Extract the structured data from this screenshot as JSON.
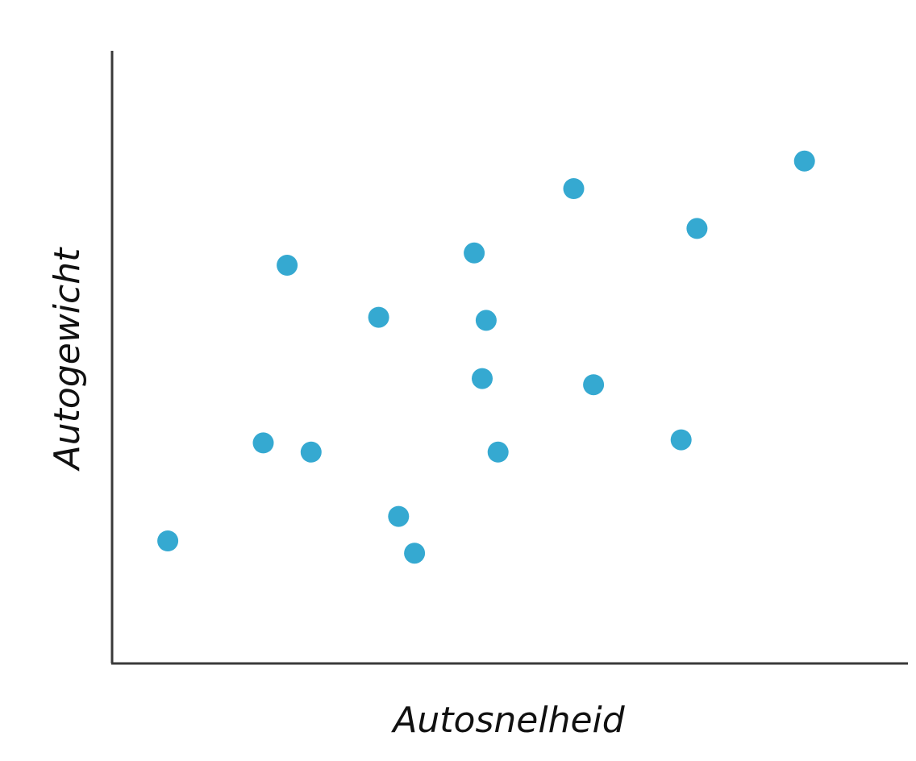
{
  "chart_data": {
    "type": "scatter",
    "title": "",
    "xlabel": "Autosnelheid",
    "ylabel": "Autogewicht",
    "grid": false,
    "legend": "none",
    "xlim": [
      0,
      100
    ],
    "ylim": [
      0,
      100
    ],
    "point_color": "#35a9d1",
    "series": [
      {
        "points": [
          {
            "x": 7.0,
            "y": 20.0
          },
          {
            "x": 19.0,
            "y": 36.0
          },
          {
            "x": 22.0,
            "y": 65.0
          },
          {
            "x": 25.0,
            "y": 34.5
          },
          {
            "x": 33.5,
            "y": 56.5
          },
          {
            "x": 36.0,
            "y": 24.0
          },
          {
            "x": 38.0,
            "y": 18.0
          },
          {
            "x": 45.5,
            "y": 67.0
          },
          {
            "x": 46.5,
            "y": 46.5
          },
          {
            "x": 47.0,
            "y": 56.0
          },
          {
            "x": 48.5,
            "y": 34.5
          },
          {
            "x": 58.0,
            "y": 77.5
          },
          {
            "x": 60.5,
            "y": 45.5
          },
          {
            "x": 71.5,
            "y": 36.5
          },
          {
            "x": 73.5,
            "y": 71.0
          },
          {
            "x": 87.0,
            "y": 82.0
          }
        ]
      }
    ]
  }
}
